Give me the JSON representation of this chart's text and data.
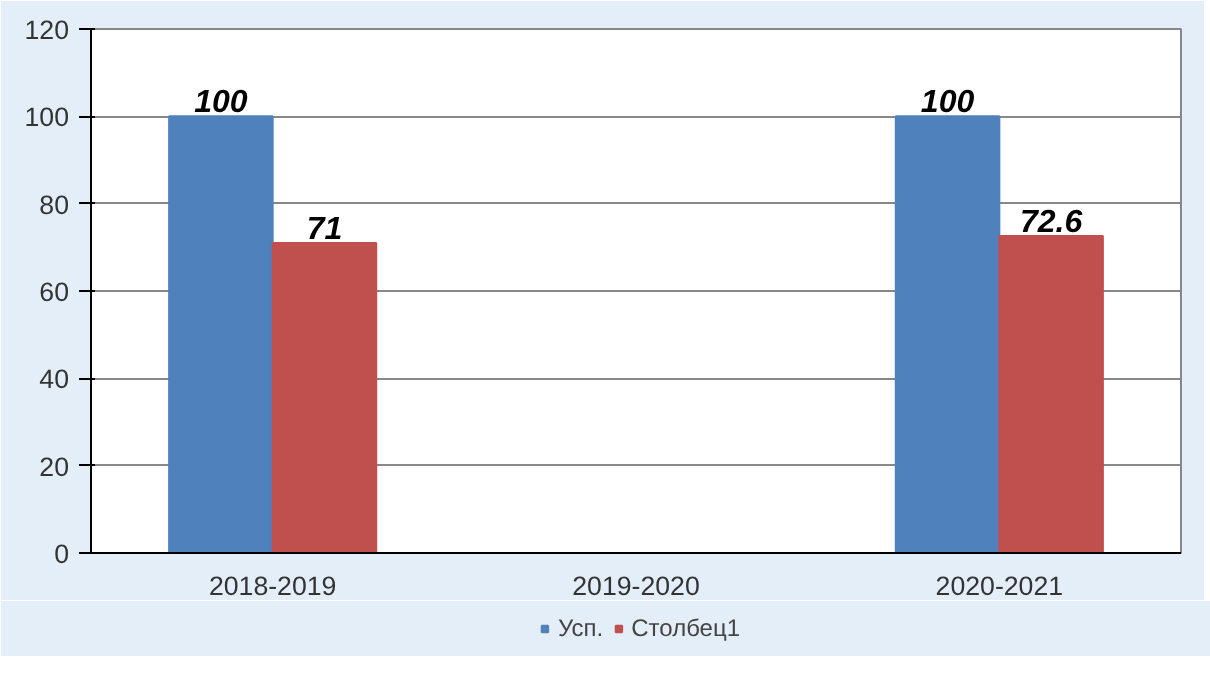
{
  "chart_data": {
    "type": "bar",
    "categories": [
      "2018-2019",
      "2019-2020",
      "2020-2021"
    ],
    "series": [
      {
        "name": "Усп.",
        "color": "#4f81bd",
        "values": [
          100,
          null,
          100
        ]
      },
      {
        "name": "Столбец1",
        "color": "#c0504d",
        "values": [
          71,
          null,
          72.6
        ]
      }
    ],
    "ylim": [
      0,
      120
    ],
    "yticks": [
      0,
      20,
      40,
      60,
      80,
      100,
      120
    ],
    "grid": "y",
    "legend": "bottom",
    "data_labels": true
  }
}
